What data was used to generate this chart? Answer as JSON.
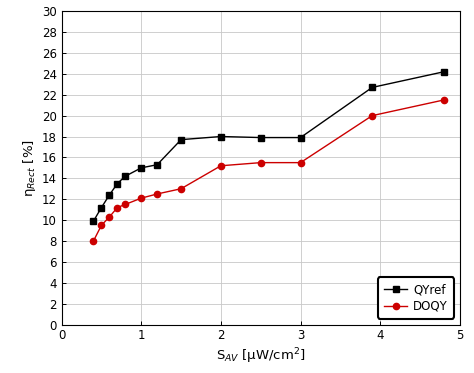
{
  "QYref_x": [
    0.4,
    0.5,
    0.6,
    0.7,
    0.8,
    1.0,
    1.2,
    1.5,
    2.0,
    2.5,
    3.0,
    3.9,
    4.8
  ],
  "QYref_y": [
    9.9,
    11.2,
    12.4,
    13.5,
    14.2,
    15.0,
    15.3,
    17.7,
    18.0,
    17.9,
    17.9,
    22.7,
    24.2
  ],
  "DOQY_x": [
    0.4,
    0.5,
    0.6,
    0.7,
    0.8,
    1.0,
    1.2,
    1.5,
    2.0,
    2.5,
    3.0,
    3.9,
    4.8
  ],
  "DOQY_y": [
    8.0,
    9.5,
    10.3,
    11.2,
    11.5,
    12.1,
    12.5,
    13.0,
    15.2,
    15.5,
    15.5,
    20.0,
    21.5
  ],
  "QYref_color": "#000000",
  "DOQY_color": "#cc0000",
  "xlabel": "S$_{AV}$ [μW/cm$^2$]",
  "ylabel": "η$_{Rect}$ [%]",
  "xlim": [
    0,
    5
  ],
  "ylim": [
    0,
    30
  ],
  "xticks": [
    0,
    1,
    2,
    3,
    4,
    5
  ],
  "yticks": [
    0,
    2,
    4,
    6,
    8,
    10,
    12,
    14,
    16,
    18,
    20,
    22,
    24,
    26,
    28,
    30
  ],
  "legend_labels": [
    "QYref",
    "DOQY"
  ],
  "grid_color": "#c8c8c8",
  "bg_color": "#ffffff",
  "figwidth": 4.74,
  "figheight": 3.73,
  "dpi": 100
}
